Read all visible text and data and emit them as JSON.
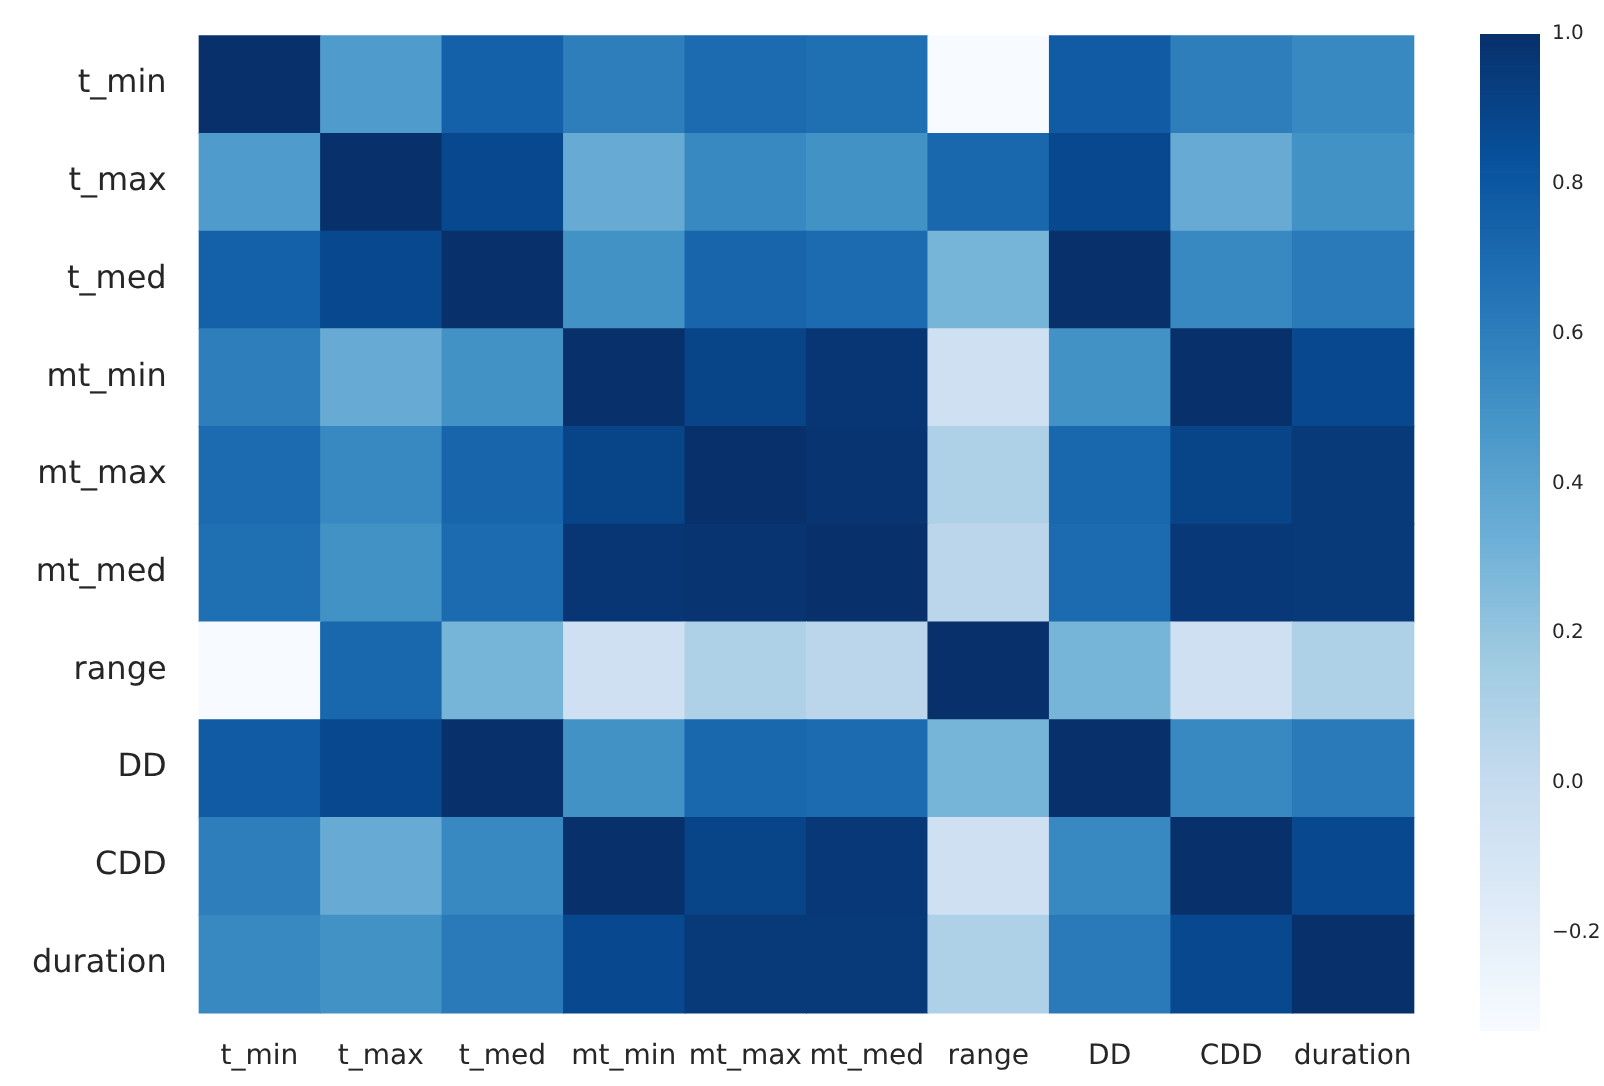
{
  "chart_data": {
    "type": "heatmap",
    "categories": [
      "t_min",
      "t_max",
      "t_med",
      "mt_min",
      "mt_max",
      "mt_med",
      "range",
      "DD",
      "CDD",
      "duration"
    ],
    "y_categories": [
      "t_min",
      "t_max",
      "t_med",
      "mt_min",
      "mt_max",
      "mt_med",
      "range",
      "DD",
      "CDD",
      "duration"
    ],
    "cells": [
      [
        1,
        0.45,
        0.75,
        0.6,
        0.7,
        0.68,
        -0.33,
        0.78,
        0.6,
        0.55
      ],
      [
        0.45,
        1,
        0.88,
        0.35,
        0.55,
        0.5,
        0.72,
        0.88,
        0.35,
        0.5
      ],
      [
        0.75,
        0.88,
        1,
        0.5,
        0.73,
        0.7,
        0.3,
        1,
        0.55,
        0.62
      ],
      [
        0.6,
        0.35,
        0.5,
        1,
        0.9,
        0.97,
        -0.05,
        0.5,
        1,
        0.88
      ],
      [
        0.7,
        0.55,
        0.73,
        0.9,
        1,
        0.98,
        0.1,
        0.72,
        0.9,
        0.95
      ],
      [
        0.68,
        0.5,
        0.7,
        0.97,
        0.98,
        1,
        0.05,
        0.7,
        0.96,
        0.95
      ],
      [
        -0.33,
        0.72,
        0.3,
        -0.05,
        0.1,
        0.05,
        1,
        0.3,
        -0.05,
        0.1
      ],
      [
        0.78,
        0.88,
        1,
        0.5,
        0.72,
        0.7,
        0.3,
        1,
        0.55,
        0.62
      ],
      [
        0.6,
        0.35,
        0.55,
        1,
        0.9,
        0.96,
        -0.05,
        0.55,
        1,
        0.88
      ],
      [
        0.55,
        0.5,
        0.62,
        0.88,
        0.95,
        0.95,
        0.1,
        0.62,
        0.88,
        1
      ]
    ],
    "clim": [
      -0.33,
      1
    ],
    "cticks": [
      {
        "value": -0.2,
        "label": "−0.2"
      },
      {
        "value": 0,
        "label": "0.0"
      },
      {
        "value": 0.2,
        "label": "0.2"
      },
      {
        "value": 0.4,
        "label": "0.4"
      },
      {
        "value": 0.6,
        "label": "0.6"
      },
      {
        "value": 0.8,
        "label": "0.8"
      },
      {
        "value": 1,
        "label": "1.0"
      }
    ]
  }
}
